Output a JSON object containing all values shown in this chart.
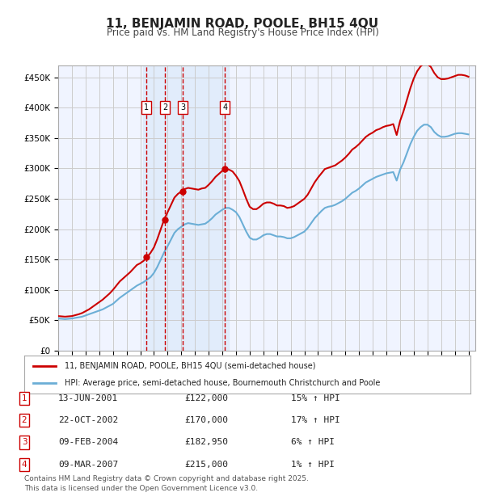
{
  "title": "11, BENJAMIN ROAD, POOLE, BH15 4QU",
  "subtitle": "Price paid vs. HM Land Registry's House Price Index (HPI)",
  "ylabel_vals": [
    0,
    50000,
    100000,
    150000,
    200000,
    250000,
    300000,
    350000,
    400000,
    450000
  ],
  "ylim": [
    0,
    470000
  ],
  "xlim_start": 1995.0,
  "xlim_end": 2025.5,
  "hpi_color": "#6baed6",
  "price_color": "#cc0000",
  "bg_color": "#ffffff",
  "plot_bg": "#f0f4ff",
  "grid_color": "#cccccc",
  "shade_color": "#d0e4f7",
  "shade_alpha": 0.45,
  "sale_marker_color": "#cc0000",
  "transactions": [
    {
      "num": 1,
      "date": "13-JUN-2001",
      "price": 122000,
      "pct": "15%",
      "dir": "↑",
      "x_year": 2001.45
    },
    {
      "num": 2,
      "date": "22-OCT-2002",
      "price": 170000,
      "pct": "17%",
      "dir": "↑",
      "x_year": 2002.8
    },
    {
      "num": 3,
      "date": "09-FEB-2004",
      "price": 182950,
      "pct": "6%",
      "dir": "↑",
      "x_year": 2004.1
    },
    {
      "num": 4,
      "date": "09-MAR-2007",
      "price": 215000,
      "pct": "1%",
      "dir": "↑",
      "x_year": 2007.19
    }
  ],
  "legend_line1": "11, BENJAMIN ROAD, POOLE, BH15 4QU (semi-detached house)",
  "legend_line2": "HPI: Average price, semi-detached house, Bournemouth Christchurch and Poole",
  "footnote": "Contains HM Land Registry data © Crown copyright and database right 2025.\nThis data is licensed under the Open Government Licence v3.0.",
  "hpi_data": {
    "years": [
      1995.0,
      1995.25,
      1995.5,
      1995.75,
      1996.0,
      1996.25,
      1996.5,
      1996.75,
      1997.0,
      1997.25,
      1997.5,
      1997.75,
      1998.0,
      1998.25,
      1998.5,
      1998.75,
      1999.0,
      1999.25,
      1999.5,
      1999.75,
      2000.0,
      2000.25,
      2000.5,
      2000.75,
      2001.0,
      2001.25,
      2001.5,
      2001.75,
      2002.0,
      2002.25,
      2002.5,
      2002.75,
      2003.0,
      2003.25,
      2003.5,
      2003.75,
      2004.0,
      2004.25,
      2004.5,
      2004.75,
      2005.0,
      2005.25,
      2005.5,
      2005.75,
      2006.0,
      2006.25,
      2006.5,
      2006.75,
      2007.0,
      2007.25,
      2007.5,
      2007.75,
      2008.0,
      2008.25,
      2008.5,
      2008.75,
      2009.0,
      2009.25,
      2009.5,
      2009.75,
      2010.0,
      2010.25,
      2010.5,
      2010.75,
      2011.0,
      2011.25,
      2011.5,
      2011.75,
      2012.0,
      2012.25,
      2012.5,
      2012.75,
      2013.0,
      2013.25,
      2013.5,
      2013.75,
      2014.0,
      2014.25,
      2014.5,
      2014.75,
      2015.0,
      2015.25,
      2015.5,
      2015.75,
      2016.0,
      2016.25,
      2016.5,
      2016.75,
      2017.0,
      2017.25,
      2017.5,
      2017.75,
      2018.0,
      2018.25,
      2018.5,
      2018.75,
      2019.0,
      2019.25,
      2019.5,
      2019.75,
      2020.0,
      2020.25,
      2020.5,
      2020.75,
      2021.0,
      2021.25,
      2021.5,
      2021.75,
      2022.0,
      2022.25,
      2022.5,
      2022.75,
      2023.0,
      2023.25,
      2023.5,
      2023.75,
      2024.0,
      2024.25,
      2024.5,
      2024.75,
      2025.0
    ],
    "values": [
      53000,
      52500,
      52000,
      52500,
      53000,
      54000,
      55000,
      56000,
      58000,
      60000,
      62000,
      64000,
      66000,
      68000,
      71000,
      74000,
      77000,
      82000,
      87000,
      91000,
      95000,
      99000,
      103000,
      107000,
      110000,
      113000,
      117000,
      121000,
      128000,
      138000,
      150000,
      162000,
      172000,
      183000,
      194000,
      200000,
      204000,
      208000,
      210000,
      209000,
      208000,
      207000,
      208000,
      209000,
      213000,
      218000,
      224000,
      228000,
      232000,
      235000,
      235000,
      232000,
      228000,
      220000,
      208000,
      196000,
      186000,
      183000,
      183000,
      186000,
      190000,
      192000,
      192000,
      190000,
      188000,
      188000,
      187000,
      185000,
      185000,
      187000,
      190000,
      193000,
      196000,
      202000,
      210000,
      218000,
      224000,
      230000,
      235000,
      237000,
      238000,
      240000,
      243000,
      246000,
      250000,
      255000,
      260000,
      263000,
      267000,
      272000,
      277000,
      280000,
      283000,
      286000,
      288000,
      290000,
      292000,
      293000,
      294000,
      280000,
      298000,
      310000,
      325000,
      340000,
      352000,
      362000,
      368000,
      372000,
      372000,
      368000,
      360000,
      355000,
      352000,
      352000,
      353000,
      355000,
      357000,
      358000,
      358000,
      357000,
      356000
    ]
  },
  "price_data": {
    "years": [
      1995.0,
      1995.25,
      1995.5,
      1995.75,
      1996.0,
      1996.25,
      1996.5,
      1996.75,
      1997.0,
      1997.25,
      1997.5,
      1997.75,
      1998.0,
      1998.25,
      1998.5,
      1998.75,
      1999.0,
      1999.25,
      1999.5,
      1999.75,
      2000.0,
      2000.25,
      2000.5,
      2000.75,
      2001.0,
      2001.25,
      2001.5,
      2001.75,
      2002.0,
      2002.25,
      2002.5,
      2002.75,
      2003.0,
      2003.25,
      2003.5,
      2003.75,
      2004.0,
      2004.25,
      2004.5,
      2004.75,
      2005.0,
      2005.25,
      2005.5,
      2005.75,
      2006.0,
      2006.25,
      2006.5,
      2006.75,
      2007.0,
      2007.25,
      2007.5,
      2007.75,
      2008.0,
      2008.25,
      2008.5,
      2008.75,
      2009.0,
      2009.25,
      2009.5,
      2009.75,
      2010.0,
      2010.25,
      2010.5,
      2010.75,
      2011.0,
      2011.25,
      2011.5,
      2011.75,
      2012.0,
      2012.25,
      2012.5,
      2012.75,
      2013.0,
      2013.25,
      2013.5,
      2013.75,
      2014.0,
      2014.25,
      2014.5,
      2014.75,
      2015.0,
      2015.25,
      2015.5,
      2015.75,
      2016.0,
      2016.25,
      2016.5,
      2016.75,
      2017.0,
      2017.25,
      2017.5,
      2017.75,
      2018.0,
      2018.25,
      2018.5,
      2018.75,
      2019.0,
      2019.25,
      2019.5,
      2019.75,
      2020.0,
      2020.25,
      2020.5,
      2020.75,
      2021.0,
      2021.25,
      2021.5,
      2021.75,
      2022.0,
      2022.25,
      2022.5,
      2022.75,
      2023.0,
      2023.25,
      2023.5,
      2023.75,
      2024.0,
      2024.25,
      2024.5,
      2024.75,
      2025.0
    ],
    "values": [
      57000,
      56500,
      56000,
      56500,
      57000,
      58500,
      60000,
      62000,
      65000,
      68000,
      72000,
      76000,
      80000,
      84000,
      89000,
      94000,
      100000,
      107000,
      114000,
      119000,
      124000,
      129000,
      135000,
      141000,
      144000,
      148000,
      154000,
      161000,
      170000,
      184000,
      200000,
      216000,
      228000,
      240000,
      252000,
      258000,
      262000,
      266000,
      268000,
      267000,
      266000,
      265000,
      267000,
      268000,
      273000,
      279000,
      286000,
      291000,
      296000,
      299000,
      298000,
      295000,
      288000,
      279000,
      265000,
      250000,
      237000,
      233000,
      233000,
      237000,
      242000,
      244000,
      244000,
      242000,
      239000,
      239000,
      238000,
      235000,
      236000,
      238000,
      242000,
      246000,
      250000,
      257000,
      267000,
      277000,
      285000,
      292000,
      299000,
      301000,
      303000,
      305000,
      309000,
      313000,
      318000,
      324000,
      331000,
      335000,
      340000,
      346000,
      352000,
      356000,
      359000,
      363000,
      365000,
      368000,
      370000,
      371000,
      373000,
      355000,
      378000,
      394000,
      413000,
      432000,
      448000,
      460000,
      468000,
      473000,
      472000,
      467000,
      457000,
      450000,
      447000,
      447000,
      448000,
      450000,
      452000,
      454000,
      454000,
      453000,
      451000
    ]
  }
}
